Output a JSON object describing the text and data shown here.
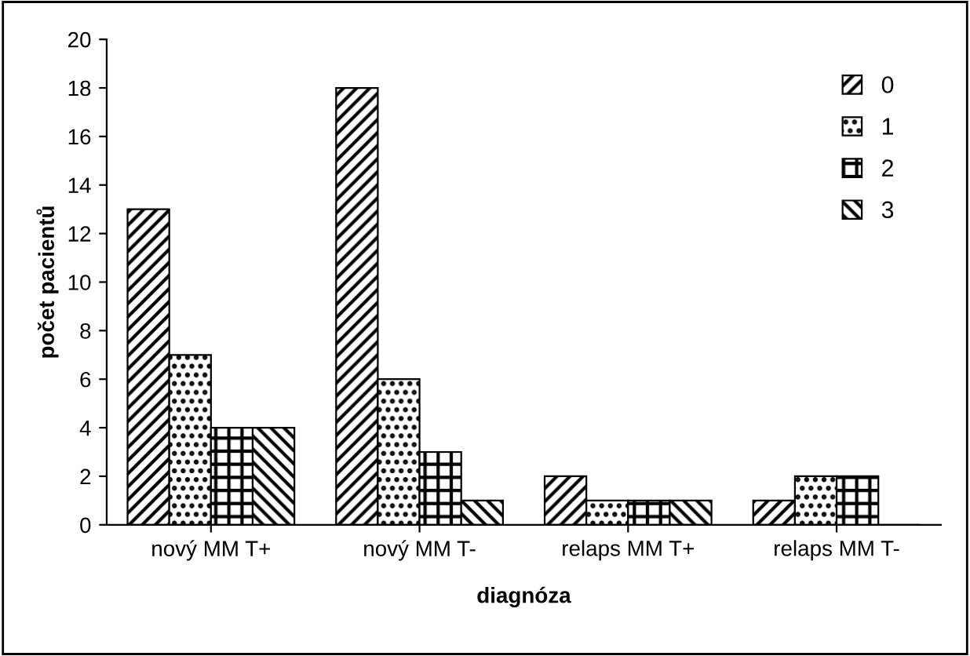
{
  "chart_data": {
    "type": "bar",
    "xlabel": "diagnóza",
    "ylabel": "počet pacientů",
    "categories": [
      "nový MM T+",
      "nový MM T-",
      "relaps MM T+",
      "relaps MM T-"
    ],
    "series": [
      {
        "name": "0",
        "color": "#000000",
        "values": [
          13,
          18,
          2,
          1
        ]
      },
      {
        "name": "1",
        "color": "#000000",
        "values": [
          7,
          6,
          1,
          2
        ]
      },
      {
        "name": "2",
        "color": "#000000",
        "values": [
          4,
          3,
          1,
          2
        ]
      },
      {
        "name": "3",
        "color": "#000000",
        "values": [
          4,
          1,
          1,
          0
        ]
      }
    ],
    "ylim": [
      0,
      20
    ],
    "yticks": [
      0,
      2,
      4,
      6,
      8,
      10,
      12,
      14,
      16,
      18,
      20
    ],
    "grid": false,
    "legend": "top right"
  }
}
